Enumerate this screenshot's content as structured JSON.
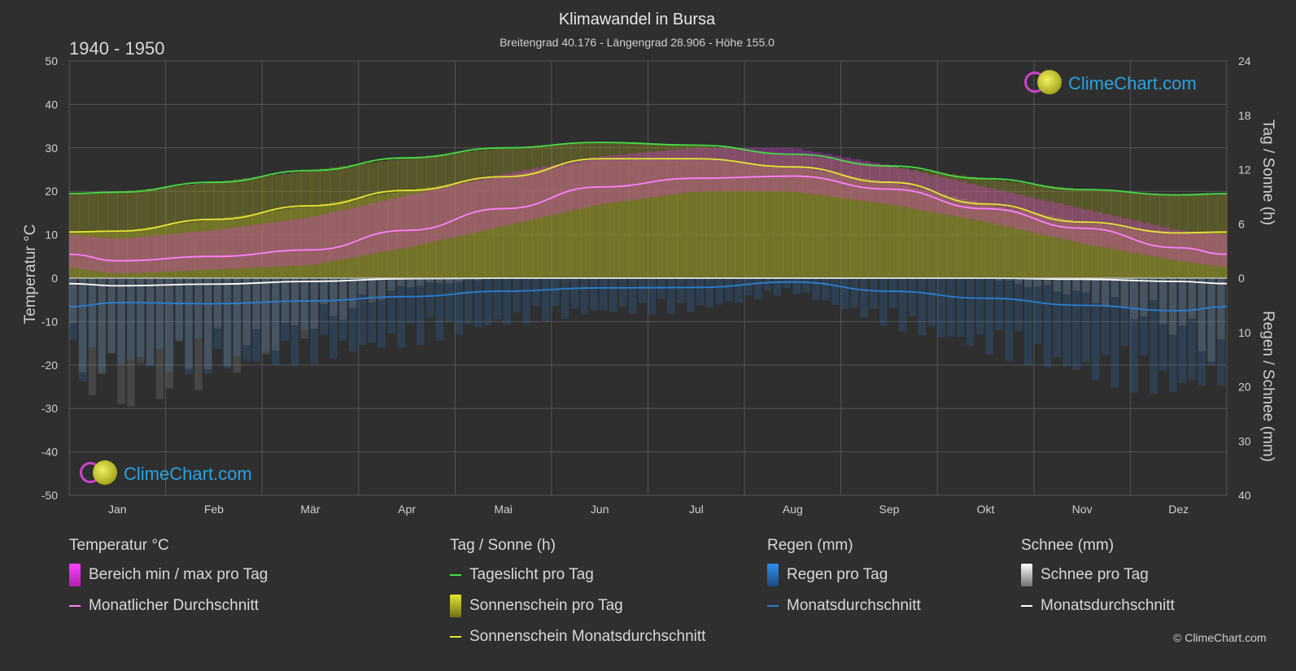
{
  "header": {
    "title": "Klimawandel in Bursa",
    "subtitle": "Breitengrad 40.176 - Längengrad 28.906 - Höhe 155.0",
    "period": "1940 - 1950"
  },
  "branding": {
    "name": "ClimeChart.com",
    "copyright": "© ClimeChart.com"
  },
  "axes": {
    "left_label": "Temperatur °C",
    "right_top_label": "Tag / Sonne (h)",
    "right_bottom_label": "Regen / Schnee (mm)",
    "left_ticks": [
      "50",
      "40",
      "30",
      "20",
      "10",
      "0",
      "-10",
      "-20",
      "-30",
      "-40",
      "-50"
    ],
    "right_top_ticks": [
      "24",
      "18",
      "12",
      "6",
      "0"
    ],
    "right_bottom_ticks": [
      "10",
      "20",
      "30",
      "40"
    ]
  },
  "legend": {
    "temperature": {
      "title": "Temperatur °C",
      "range_label": "Bereich min / max pro Tag",
      "avg_label": "Monatlicher Durchschnitt"
    },
    "sun": {
      "title": "Tag / Sonne (h)",
      "daylight_label": "Tageslicht pro Tag",
      "sunshine_label": "Sonnenschein pro Tag",
      "sunshine_avg_label": "Sonnenschein Monatsdurchschnitt"
    },
    "rain": {
      "title": "Regen (mm)",
      "rain_label": "Regen pro Tag",
      "avg_label": "Monatsdurchschnitt"
    },
    "snow": {
      "title": "Schnee (mm)",
      "snow_label": "Schnee pro Tag",
      "avg_label": "Monatsdurchschnitt"
    }
  },
  "colors": {
    "background": "#2f2f2f",
    "grid": "#555555",
    "daylight": "#44dd44",
    "sunshine_avg": "#e6e632",
    "sunshine_fill": "#8a8a28",
    "temp_avg": "#ff80ff",
    "temp_range": "#d63cd6",
    "rain": "#2a7fd4",
    "snow": "#ffffff"
  },
  "chart_data": {
    "type": "line",
    "months": [
      "Jan",
      "Feb",
      "Mär",
      "Apr",
      "Mai",
      "Jun",
      "Jul",
      "Aug",
      "Sep",
      "Okt",
      "Nov",
      "Dez"
    ],
    "temperature_axis": {
      "min": -50,
      "max": 50,
      "unit": "°C"
    },
    "sun_axis": {
      "min": 0,
      "max": 24,
      "unit": "h"
    },
    "precip_axis": {
      "min": 0,
      "max": 40,
      "unit": "mm"
    },
    "series": [
      {
        "name": "Tageslicht pro Tag",
        "unit": "h",
        "values": [
          9.5,
          10.6,
          11.9,
          13.3,
          14.4,
          15.0,
          14.7,
          13.7,
          12.4,
          11.0,
          9.8,
          9.2
        ]
      },
      {
        "name": "Sonnenschein Monatsdurchschnitt",
        "unit": "h",
        "values": [
          5.2,
          6.5,
          8.0,
          9.7,
          11.2,
          13.2,
          13.2,
          12.3,
          10.6,
          8.2,
          6.2,
          5.0
        ]
      },
      {
        "name": "Monatlicher Durchschnitt",
        "unit": "°C",
        "values": [
          4.0,
          5.0,
          6.5,
          11.0,
          16.0,
          21.0,
          23.0,
          23.5,
          20.5,
          16.0,
          11.5,
          7.0
        ]
      },
      {
        "name": "Regen Monatsdurchschnitt",
        "unit": "mm",
        "values": [
          4.5,
          4.7,
          4.2,
          3.4,
          2.4,
          1.8,
          1.7,
          0.7,
          2.4,
          3.7,
          5.0,
          6.0
        ]
      },
      {
        "name": "Schnee Monatsdurchschnitt",
        "unit": "mm",
        "values": [
          1.4,
          1.1,
          0.6,
          0.1,
          0.0,
          0.0,
          0.0,
          0.0,
          0.0,
          0.0,
          0.2,
          0.6
        ]
      }
    ],
    "temp_range": {
      "name": "Bereich min / max pro Tag",
      "min": [
        1,
        2,
        3,
        7,
        12,
        17,
        20,
        20,
        17,
        13,
        8,
        4
      ],
      "max": [
        9,
        11,
        14,
        19,
        24,
        28,
        30,
        30,
        26,
        21,
        16,
        11
      ]
    }
  }
}
